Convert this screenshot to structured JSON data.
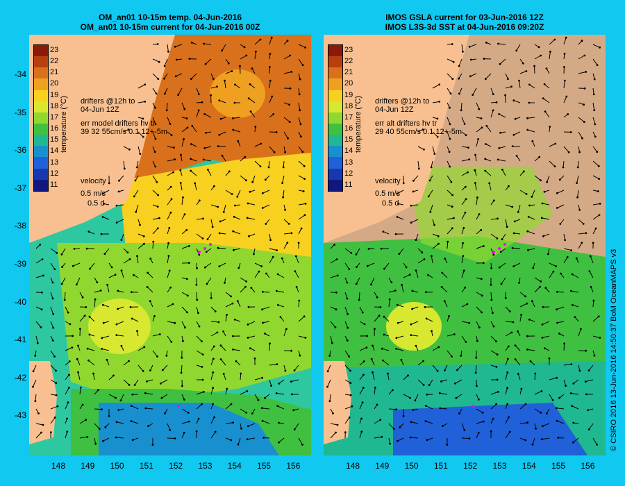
{
  "left_panel": {
    "title_line1": "OM_an01 10-15m temp. 04-Jun-2016",
    "title_line2": "OM_an01 10-15m current for 04-Jun-2016 00Z",
    "drifters_line1": "drifters @12h to",
    "drifters_line2": "04-Jun 12Z",
    "err_line1": "err model drifters hv tr",
    "err_line2": "39 32 55cm/s 0.1 12+-5m"
  },
  "right_panel": {
    "title_line1": "IMOS GSLA current for 03-Jun-2016 12Z",
    "title_line2": "IMOS L3S-3d SST at 04-Jun-2016 09:20Z",
    "drifters_line1": "drifters @12h to",
    "drifters_line2": "04-Jun 12Z",
    "err_line1": "err alt drifters hv tr",
    "err_line2": "29 40 55cm/s 0.1 12+-5m"
  },
  "colorbar": {
    "title": "temperature (°C)",
    "ticks": [
      "23",
      "22",
      "21",
      "20",
      "19",
      "18",
      "17",
      "16",
      "15",
      "14",
      "13",
      "12",
      "11"
    ],
    "colors": [
      "#8b1a0a",
      "#b8400e",
      "#d9701c",
      "#f0a020",
      "#f8d020",
      "#d8e830",
      "#90d830",
      "#40c040",
      "#20b890",
      "#1890d0",
      "#2060d8",
      "#1838b0",
      "#101880"
    ]
  },
  "legend": {
    "velocity_label": "velocity",
    "speed_label": "0.5 m/s",
    "days_label": "0.5 d"
  },
  "axes": {
    "lat_labels": [
      "-34",
      "-35",
      "-36",
      "-37",
      "-38",
      "-39",
      "-40",
      "-41",
      "-42",
      "-43"
    ],
    "lon_labels": [
      "148",
      "149",
      "150",
      "151",
      "152",
      "153",
      "154",
      "155",
      "156"
    ]
  },
  "credit": "© CSIRO 2016  13-Jun-2016 14:50:37 BoM OceanMAPS v3",
  "colors": {
    "background": "#10c8f0",
    "land": "#f8c090",
    "no_data": "#d4aa86",
    "drifter": "#ff00ff"
  }
}
